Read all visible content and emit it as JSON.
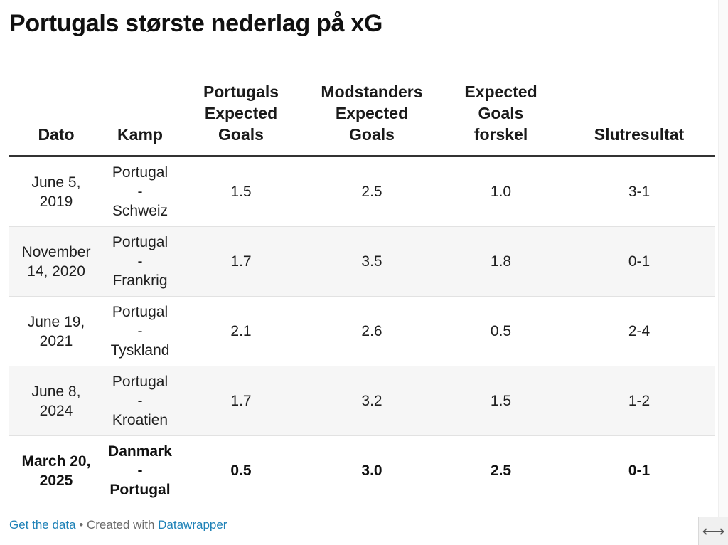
{
  "title": "Portugals største nederlag på xG",
  "table": {
    "headers": [
      [
        "Dato"
      ],
      [
        "Kamp"
      ],
      [
        "Portugals",
        "Expected",
        "Goals"
      ],
      [
        "Modstanders",
        "Expected",
        "Goals"
      ],
      [
        "Expected",
        "Goals",
        "forskel"
      ],
      [
        "Slutresultat"
      ]
    ],
    "rows": [
      {
        "dato": [
          "June 5,",
          "2019"
        ],
        "kamp": [
          "Portugal",
          "-",
          "Schweiz"
        ],
        "portugal_xg": "1.5",
        "modstander_xg": "2.5",
        "forskel": "1.0",
        "resultat": "3-1",
        "highlight": false
      },
      {
        "dato": [
          "November",
          "14, 2020"
        ],
        "kamp": [
          "Portugal",
          "-",
          "Frankrig"
        ],
        "portugal_xg": "1.7",
        "modstander_xg": "3.5",
        "forskel": "1.8",
        "resultat": "0-1",
        "highlight": false
      },
      {
        "dato": [
          "June 19,",
          "2021"
        ],
        "kamp": [
          "Portugal",
          "-",
          "Tyskland"
        ],
        "portugal_xg": "2.1",
        "modstander_xg": "2.6",
        "forskel": "0.5",
        "resultat": "2-4",
        "highlight": false
      },
      {
        "dato": [
          "June 8,",
          "2024"
        ],
        "kamp": [
          "Portugal",
          "-",
          "Kroatien"
        ],
        "portugal_xg": "1.7",
        "modstander_xg": "3.2",
        "forskel": "1.5",
        "resultat": "1-2",
        "highlight": false
      },
      {
        "dato": [
          "March 20,",
          "2025"
        ],
        "kamp": [
          "Danmark",
          "-",
          "Portugal"
        ],
        "portugal_xg": "0.5",
        "modstander_xg": "3.0",
        "forskel": "2.5",
        "resultat": "0-1",
        "highlight": true
      }
    ]
  },
  "footer": {
    "get_data": "Get the data",
    "separator": " • Created with ",
    "datawrapper": "Datawrapper"
  },
  "resize_glyph": "⟷",
  "chart_data": {
    "type": "table",
    "title": "Portugals største nederlag på xG",
    "columns": [
      "Dato",
      "Kamp",
      "Portugals Expected Goals",
      "Modstanders Expected Goals",
      "Expected Goals forskel",
      "Slutresultat"
    ],
    "rows": [
      [
        "June 5, 2019",
        "Portugal - Schweiz",
        1.5,
        2.5,
        1.0,
        "3-1"
      ],
      [
        "November 14, 2020",
        "Portugal - Frankrig",
        1.7,
        3.5,
        1.8,
        "0-1"
      ],
      [
        "June 19, 2021",
        "Portugal - Tyskland",
        2.1,
        2.6,
        0.5,
        "2-4"
      ],
      [
        "June 8, 2024",
        "Portugal - Kroatien",
        1.7,
        3.2,
        1.5,
        "1-2"
      ],
      [
        "March 20, 2025",
        "Danmark - Portugal",
        0.5,
        3.0,
        2.5,
        "0-1"
      ]
    ],
    "highlighted_row": "March 20, 2025"
  }
}
